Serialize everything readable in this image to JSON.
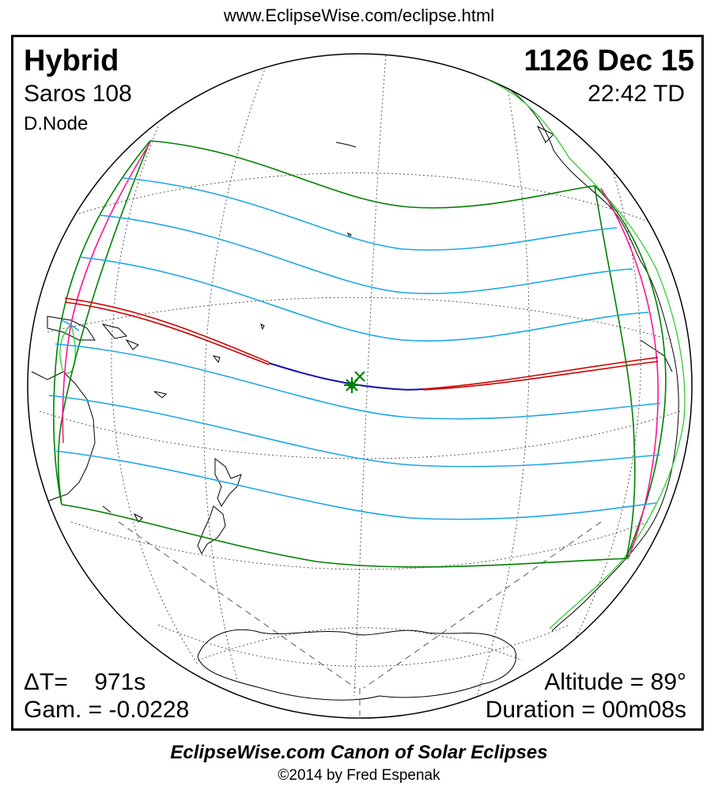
{
  "header": {
    "url": "www.EclipseWise.com/eclipse.html"
  },
  "eclipse": {
    "type": "Hybrid",
    "saros": "Saros 108",
    "node": "D.Node",
    "date": "1126 Dec 15",
    "time": "22:42 TD",
    "delta_t": "ΔT=    971s",
    "gamma": "Gam. = -0.0228",
    "altitude": "Altitude = 89°",
    "duration": "Duration = 00m08s"
  },
  "footer": {
    "canon": "EclipseWise.com Canon of Solar Eclipses",
    "copyright": "©2014 by Fred Espenak"
  },
  "colors": {
    "penumbra_limits": "#008000",
    "partial_contours": "#1ea7e6",
    "total_path": "#1010b0",
    "annular_path": "#d00000",
    "rise_set": "#ff1493",
    "land_outline": "#000000",
    "greatest_eclipse": "#008000"
  },
  "markers": {
    "greatest_eclipse": "star-marker",
    "subsolar": "x-marker"
  }
}
